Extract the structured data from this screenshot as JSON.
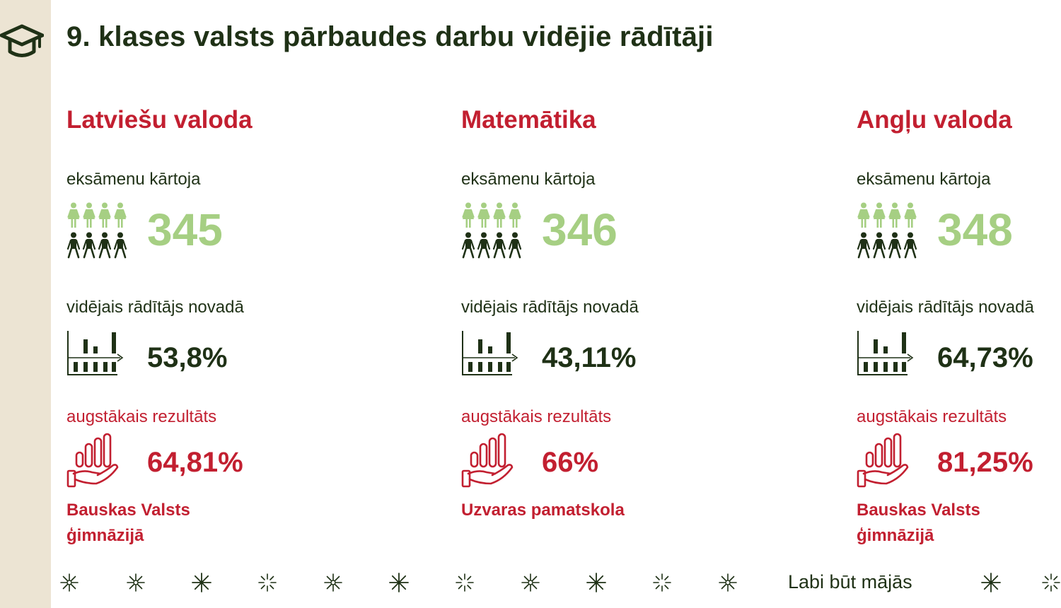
{
  "page": {
    "title": "9. klases valsts pārbaudes darbu vidējie rādītāji",
    "slogan": "Labi būt mājās",
    "icon": "graduation-cap-icon"
  },
  "colors": {
    "dark_green": "#1f3116",
    "red": "#c21f30",
    "light_green": "#a6cf83",
    "strip": "#ece4d3"
  },
  "subjects": [
    {
      "name": "Latviešu valoda",
      "took_label": "eksāmenu kārtoja",
      "took_count": "345",
      "avg_label": "vidējais rādītājs novadā",
      "avg_value": "53,8%",
      "best_label": "augstākais rezultāts",
      "best_value": "64,81%",
      "best_school": "Bauskas Valsts ģimnāzijā"
    },
    {
      "name": "Matemātika",
      "took_label": "eksāmenu kārtoja",
      "took_count": "346",
      "avg_label": "vidējais rādītājs novadā",
      "avg_value": "43,11%",
      "best_label": "augstākais rezultāts",
      "best_value": "66%",
      "best_school": "Uzvaras pamatskola"
    },
    {
      "name": "Angļu valoda",
      "took_label": "eksāmenu kārtoja",
      "took_count": "348",
      "avg_label": "vidējais rādītājs novadā",
      "avg_value": "64,73%",
      "best_label": "augstākais rezultāts",
      "best_value": "81,25%",
      "best_school": "Bauskas Valsts ģimnāzijā"
    }
  ]
}
